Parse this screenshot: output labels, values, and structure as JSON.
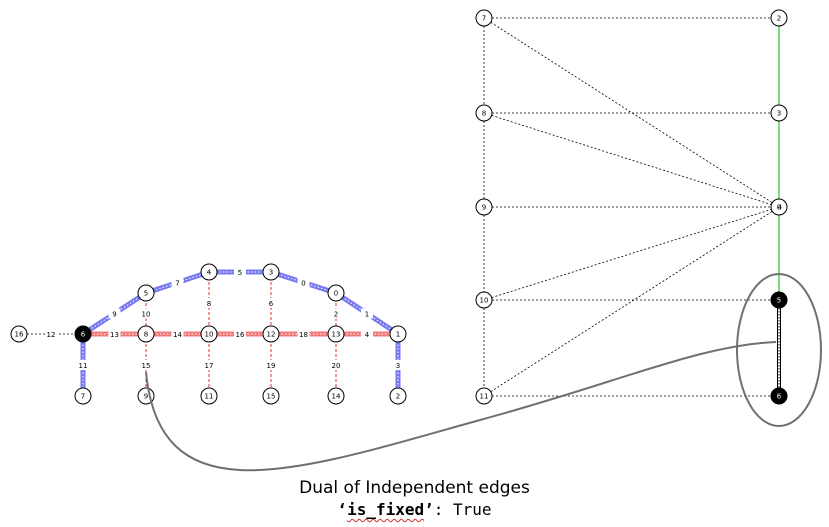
{
  "colors": {
    "blue": "#7878f0",
    "red": "#f07878",
    "green": "#50d050",
    "black": "#000000",
    "connector": "#707070"
  },
  "left_graph": {
    "nodes": [
      {
        "id": "16"
      },
      {
        "id": "6"
      },
      {
        "id": "8"
      },
      {
        "id": "10"
      },
      {
        "id": "12"
      },
      {
        "id": "13"
      },
      {
        "id": "1"
      },
      {
        "id": "5"
      },
      {
        "id": "4"
      },
      {
        "id": "3"
      },
      {
        "id": "0"
      },
      {
        "id": "7"
      },
      {
        "id": "9"
      },
      {
        "id": "11"
      },
      {
        "id": "15"
      },
      {
        "id": "14"
      },
      {
        "id": "2"
      }
    ],
    "edges": [
      {
        "id": "12",
        "from": "16",
        "to": "6",
        "style": "plain"
      },
      {
        "id": "13",
        "from": "6",
        "to": "8",
        "style": "red"
      },
      {
        "id": "14",
        "from": "8",
        "to": "10",
        "style": "red"
      },
      {
        "id": "16",
        "from": "10",
        "to": "12",
        "style": "red"
      },
      {
        "id": "18",
        "from": "12",
        "to": "13",
        "style": "red"
      },
      {
        "id": "4",
        "from": "13",
        "to": "1",
        "style": "red"
      },
      {
        "id": "9",
        "from": "6",
        "to": "5",
        "style": "blue"
      },
      {
        "id": "7",
        "from": "5",
        "to": "4",
        "style": "blue"
      },
      {
        "id": "5",
        "from": "4",
        "to": "3",
        "style": "blue"
      },
      {
        "id": "0",
        "from": "3",
        "to": "0",
        "style": "blue"
      },
      {
        "id": "1",
        "from": "0",
        "to": "1",
        "style": "blue"
      },
      {
        "id": "10",
        "from": "5",
        "to": "8",
        "style": "red-dash"
      },
      {
        "id": "8",
        "from": "4",
        "to": "10",
        "style": "red-dash"
      },
      {
        "id": "6",
        "from": "3",
        "to": "12",
        "style": "red-dash"
      },
      {
        "id": "2",
        "from": "0",
        "to": "13",
        "style": "red-dash"
      },
      {
        "id": "11",
        "from": "6",
        "to": "7",
        "style": "blue"
      },
      {
        "id": "15",
        "from": "8",
        "to": "9",
        "style": "red-dash"
      },
      {
        "id": "17",
        "from": "10",
        "to": "11",
        "style": "red-dash"
      },
      {
        "id": "19",
        "from": "12",
        "to": "15",
        "style": "red-dash"
      },
      {
        "id": "20",
        "from": "13",
        "to": "14",
        "style": "red-dash"
      },
      {
        "id": "3",
        "from": "1",
        "to": "2",
        "style": "blue"
      }
    ],
    "filled_node": "6"
  },
  "right_graph": {
    "left_column": [
      "7",
      "8",
      "9",
      "10",
      "11"
    ],
    "right_column": [
      "2",
      "3",
      "0",
      "5",
      "6"
    ],
    "overlay_node": "4",
    "filled_nodes": [
      "5",
      "6"
    ]
  },
  "caption": {
    "title": "Dual of Independent edges",
    "key_open_quote": "‘",
    "key": "is_fixed",
    "key_close_quote": "’",
    "separator": ": ",
    "value": "True"
  }
}
